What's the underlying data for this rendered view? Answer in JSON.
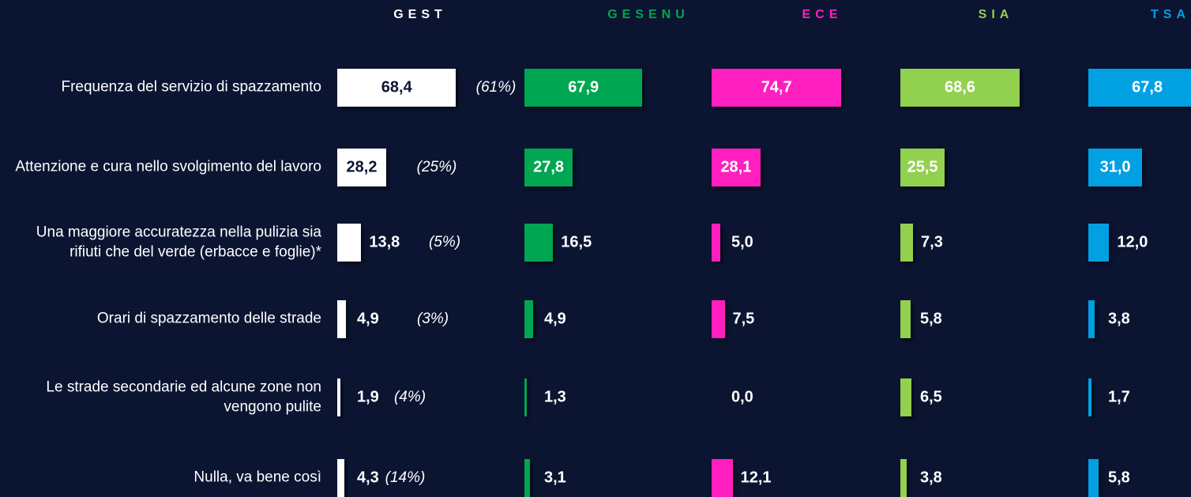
{
  "chart_data": {
    "type": "bar",
    "categories": [
      "Frequenza del servizio di spazzamento",
      "Attenzione e cura nello svolgimento del lavoro",
      "Una maggiore accuratezza nella pulizia sia rifiuti che del verde (erbacce e foglie)*",
      "Orari di spazzamento delle strade",
      "Le strade secondarie ed alcune zone non vengono pulite",
      "Nulla, va bene così"
    ],
    "series": [
      {
        "name": "GEST",
        "color": "#ffffff",
        "values": [
          68.4,
          28.2,
          13.8,
          4.9,
          1.9,
          4.3
        ],
        "value_labels": [
          "68,4",
          "28,2",
          "13,8",
          "4,9",
          "1,9",
          "4,3"
        ]
      },
      {
        "name": "GESENU",
        "color": "#00a651",
        "values": [
          67.9,
          27.8,
          16.5,
          4.9,
          1.3,
          3.1
        ],
        "value_labels": [
          "67,9",
          "27,8",
          "16,5",
          "4,9",
          "1,3",
          "3,1"
        ]
      },
      {
        "name": "ECE",
        "color": "#ff1fbf",
        "values": [
          74.7,
          28.1,
          5.0,
          7.5,
          0.0,
          12.1
        ],
        "value_labels": [
          "74,7",
          "28,1",
          "5,0",
          "7,5",
          "0,0",
          "12,1"
        ]
      },
      {
        "name": "SIA",
        "color": "#92d050",
        "values": [
          68.6,
          25.5,
          7.3,
          5.8,
          6.5,
          3.8
        ],
        "value_labels": [
          "68,6",
          "25,5",
          "7,3",
          "5,8",
          "6,5",
          "3,8"
        ]
      },
      {
        "name": "TSA",
        "color": "#00a0e3",
        "values": [
          67.8,
          31.0,
          12.0,
          3.8,
          1.7,
          5.8
        ],
        "value_labels": [
          "67,8",
          "31,0",
          "12,0",
          "3,8",
          "1,7",
          "5,8"
        ]
      }
    ],
    "annotations": [
      "(61%)",
      "(25%)",
      "(5%)",
      "(3%)",
      "(4%)",
      "(14%)"
    ]
  }
}
